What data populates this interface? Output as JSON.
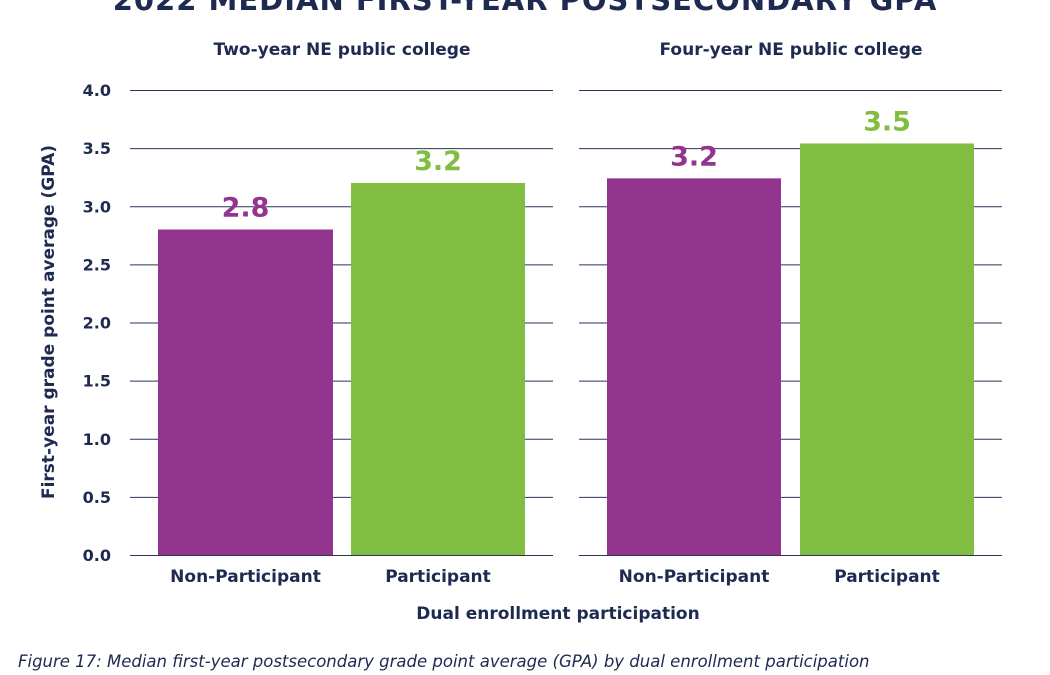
{
  "chart_data": {
    "type": "bar",
    "title": "2022 MEDIAN FIRST-YEAR POSTSECONDARY GPA",
    "ylabel": "First-year grade point average (GPA)",
    "xlabel": "Dual enrollment participation",
    "ylim": [
      0,
      4
    ],
    "yticks": [
      "0.0",
      "0.5",
      "1.0",
      "1.5",
      "2.0",
      "2.5",
      "3.0",
      "3.5",
      "4.0"
    ],
    "grid": true,
    "categories": [
      "Non-Participant",
      "Participant"
    ],
    "colors": {
      "Non-Participant": "#93358e",
      "Participant": "#80bd41",
      "text": "#1e2a4f"
    },
    "panels": [
      {
        "title": "Two-year NE public college",
        "values": [
          2.8,
          3.2
        ],
        "data_labels": [
          "2.8",
          "3.2"
        ]
      },
      {
        "title": "Four-year NE public college",
        "values": [
          3.24,
          3.54
        ],
        "data_labels": [
          "3.2",
          "3.5"
        ]
      }
    ]
  },
  "caption": "Figure 17: Median first-year postsecondary grade point average (GPA) by dual enrollment participation"
}
